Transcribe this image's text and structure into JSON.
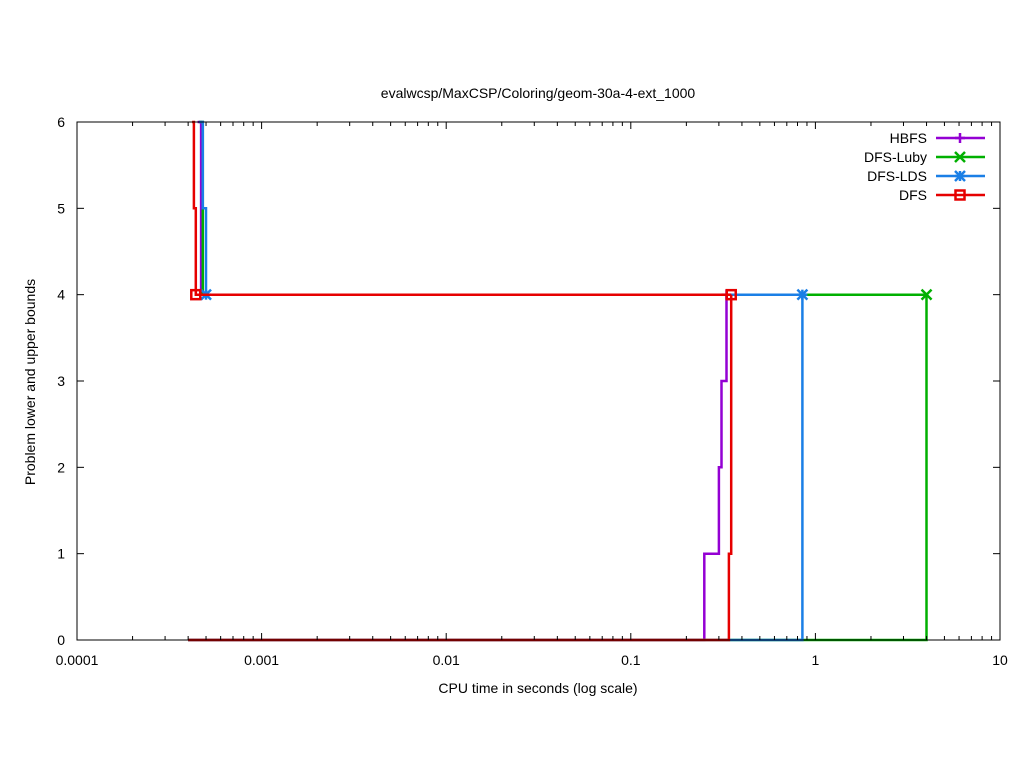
{
  "chart_data": {
    "type": "line",
    "title": "evalwcsp/MaxCSP/Coloring/geom-30a-4-ext_1000",
    "xlabel": "CPU time in seconds (log scale)",
    "ylabel": "Problem lower and upper bounds",
    "xscale": "log",
    "xlim": [
      0.0001,
      10
    ],
    "ylim": [
      0,
      6
    ],
    "xticks": [
      0.0001,
      0.001,
      0.01,
      0.1,
      1,
      10
    ],
    "xtick_labels": [
      "0.0001",
      "0.001",
      "0.01",
      "0.1",
      "1",
      "10"
    ],
    "yticks": [
      0,
      1,
      2,
      3,
      4,
      5,
      6
    ],
    "ytick_labels": [
      "0",
      "1",
      "2",
      "3",
      "4",
      "5",
      "6"
    ],
    "grid": false,
    "legend_position": "top-right",
    "series": [
      {
        "name": "HBFS",
        "color": "#9400d3",
        "marker": "plus",
        "upper": [
          [
            0.00045,
            6
          ],
          [
            0.00047,
            4
          ],
          [
            0.33,
            4
          ]
        ],
        "lower": [
          [
            0.0004,
            0
          ],
          [
            0.25,
            1
          ],
          [
            0.3,
            2
          ],
          [
            0.31,
            3
          ],
          [
            0.33,
            4
          ]
        ],
        "marker_points": [
          [
            0.33,
            4
          ]
        ]
      },
      {
        "name": "DFS-Luby",
        "color": "#00b000",
        "marker": "cross",
        "upper": [
          [
            0.00046,
            6
          ],
          [
            0.00048,
            4
          ],
          [
            4.0,
            4
          ]
        ],
        "lower": [
          [
            0.0004,
            0
          ],
          [
            4.0,
            4
          ]
        ],
        "marker_points": [
          [
            4.0,
            4
          ]
        ]
      },
      {
        "name": "DFS-LDS",
        "color": "#1a7fe6",
        "marker": "star",
        "upper": [
          [
            0.00046,
            6
          ],
          [
            0.00048,
            5
          ],
          [
            0.0005,
            4
          ],
          [
            0.85,
            4
          ]
        ],
        "lower": [
          [
            0.0004,
            0
          ],
          [
            0.85,
            4
          ]
        ],
        "marker_points": [
          [
            0.0005,
            4
          ],
          [
            0.85,
            4
          ]
        ]
      },
      {
        "name": "DFS",
        "color": "#e60000",
        "marker": "square",
        "upper": [
          [
            0.00042,
            6
          ],
          [
            0.00043,
            5
          ],
          [
            0.00044,
            4
          ],
          [
            0.35,
            4
          ]
        ],
        "lower": [
          [
            0.0004,
            0
          ],
          [
            0.34,
            1
          ],
          [
            0.35,
            4
          ]
        ],
        "marker_points": [
          [
            0.00044,
            4
          ],
          [
            0.35,
            4
          ]
        ]
      }
    ]
  }
}
